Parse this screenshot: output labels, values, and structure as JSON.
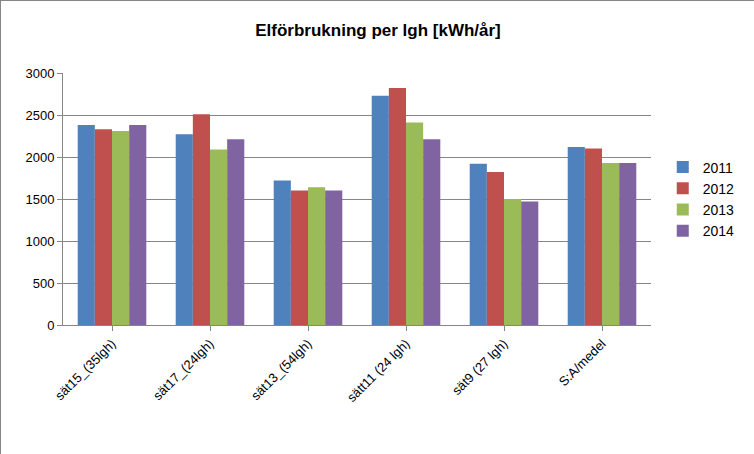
{
  "chart_data": {
    "type": "bar",
    "title": "Elförbrukning per lgh [kWh/år]",
    "categories": [
      "sät15_(35lgh)",
      "sät17_(24lgh)",
      "sät13_(54lgh)",
      "sätt11 (24 lgh)",
      "sät9 (27 lgh)",
      "S:A/medel"
    ],
    "series": [
      {
        "name": "2011",
        "color": "#4f81bd",
        "values": [
          2380,
          2270,
          1720,
          2730,
          1920,
          2120
        ]
      },
      {
        "name": "2012",
        "color": "#c0504d",
        "values": [
          2330,
          2510,
          1600,
          2820,
          1820,
          2100
        ]
      },
      {
        "name": "2013",
        "color": "#9bbb59",
        "values": [
          2310,
          2090,
          1640,
          2410,
          1500,
          1930
        ]
      },
      {
        "name": "2014",
        "color": "#8064a2",
        "values": [
          2380,
          2210,
          1600,
          2210,
          1470,
          1930
        ]
      }
    ],
    "ylim": [
      0,
      3000
    ],
    "yticks": [
      0,
      500,
      1000,
      1500,
      2000,
      2500,
      3000
    ],
    "grid": true,
    "legend": "right"
  }
}
